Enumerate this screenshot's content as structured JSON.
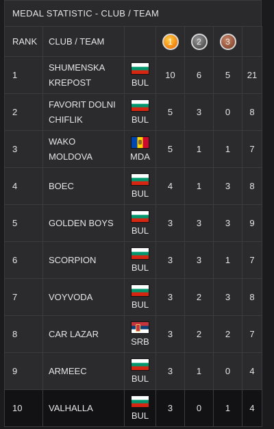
{
  "title": "MEDAL STATISTIC - CLUB / TEAM",
  "headers": {
    "rank": "RANK",
    "club": "CLUB / TEAM",
    "gold": "1",
    "silver": "2",
    "bronze": "3"
  },
  "colors": {
    "gold": "#f0820f",
    "silver": "#555555",
    "bronze": "#8e4f36",
    "background": "#1b1b1d",
    "row": "#2b2b2e"
  },
  "rows": [
    {
      "rank": "1",
      "line1": "SHUMENSKA",
      "line2": "KREPOST",
      "flag": "bulgaria-flag",
      "code": "BUL",
      "gold": "10",
      "silver": "6",
      "bronze": "5",
      "total": "21"
    },
    {
      "rank": "2",
      "line1": "FAVORIT DOLNI",
      "line2": "CHIFLIK",
      "flag": "bulgaria-flag",
      "code": "BUL",
      "gold": "5",
      "silver": "3",
      "bronze": "0",
      "total": "8"
    },
    {
      "rank": "3",
      "line1": "WAKO",
      "line2": "MOLDOVA",
      "flag": "moldova-flag",
      "code": "MDA",
      "gold": "5",
      "silver": "1",
      "bronze": "1",
      "total": "7"
    },
    {
      "rank": "4",
      "line1": "BOEC",
      "line2": "",
      "flag": "bulgaria-flag",
      "code": "BUL",
      "gold": "4",
      "silver": "1",
      "bronze": "3",
      "total": "8"
    },
    {
      "rank": "5",
      "line1": "GOLDEN BOYS",
      "line2": "",
      "flag": "bulgaria-flag",
      "code": "BUL",
      "gold": "3",
      "silver": "3",
      "bronze": "3",
      "total": "9"
    },
    {
      "rank": "6",
      "line1": "SCORPION",
      "line2": "",
      "flag": "bulgaria-flag",
      "code": "BUL",
      "gold": "3",
      "silver": "3",
      "bronze": "1",
      "total": "7"
    },
    {
      "rank": "7",
      "line1": "VOYVODA",
      "line2": "",
      "flag": "bulgaria-flag",
      "code": "BUL",
      "gold": "3",
      "silver": "2",
      "bronze": "3",
      "total": "8"
    },
    {
      "rank": "8",
      "line1": "CAR LAZAR",
      "line2": "",
      "flag": "serbia-flag",
      "code": "SRB",
      "gold": "3",
      "silver": "2",
      "bronze": "2",
      "total": "7"
    },
    {
      "rank": "9",
      "line1": "ARMEEC",
      "line2": "",
      "flag": "bulgaria-flag",
      "code": "BUL",
      "gold": "3",
      "silver": "1",
      "bronze": "0",
      "total": "4"
    },
    {
      "rank": "10",
      "line1": "VALHALLA",
      "line2": "",
      "flag": "bulgaria-flag",
      "code": "BUL",
      "gold": "3",
      "silver": "0",
      "bronze": "1",
      "total": "4"
    }
  ]
}
